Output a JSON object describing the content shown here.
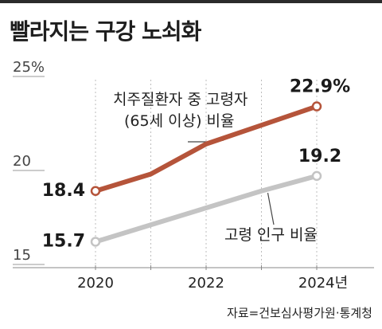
{
  "title": "빨라지는 구강 노쇠화",
  "source": "자료=건보심사평가원·통계청",
  "chart_data": {
    "type": "line",
    "x": [
      2020,
      2021,
      2022,
      2023,
      2024
    ],
    "x_tick_labels": [
      "2020",
      "2022",
      "2024년"
    ],
    "y_tick_labels": [
      "25%",
      "20",
      "15"
    ],
    "ylim": [
      15,
      25
    ],
    "grid": "vertical dashed",
    "series": [
      {
        "name": "치주질환자 중 고령자 (65세 이상) 비율",
        "label_lines": [
          "치주질환자 중 고령자",
          "(65세 이상) 비율"
        ],
        "color": "#b5543a",
        "values": [
          18.4,
          19.3,
          20.9,
          21.9,
          22.9
        ],
        "start_label": "18.4",
        "end_label": "22.9%"
      },
      {
        "name": "고령 인구 비율",
        "label_lines": [
          "고령 인구 비율"
        ],
        "color": "#c4c4c4",
        "values": [
          15.7,
          16.6,
          17.5,
          18.4,
          19.2
        ],
        "start_label": "15.7",
        "end_label": "19.2"
      }
    ]
  }
}
